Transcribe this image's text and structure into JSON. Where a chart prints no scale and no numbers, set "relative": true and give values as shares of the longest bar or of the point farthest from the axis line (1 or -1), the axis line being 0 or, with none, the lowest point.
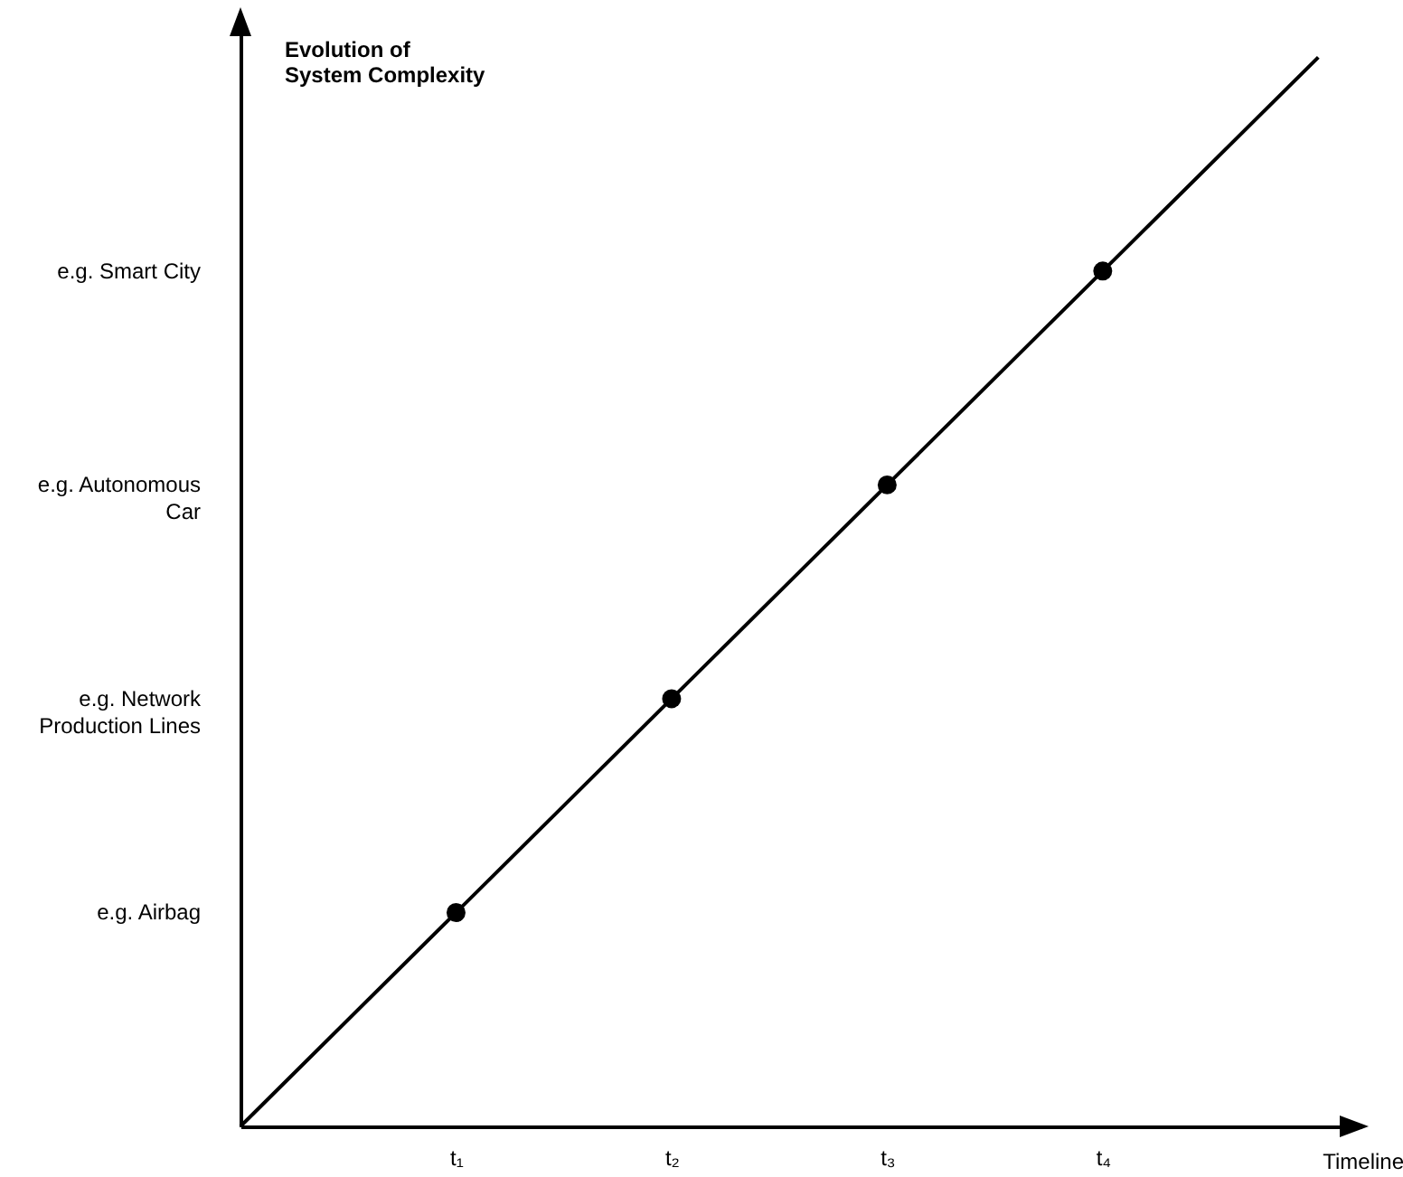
{
  "chart_data": {
    "type": "line",
    "relative": true,
    "ylabel": "Evolution of System Complexity",
    "xlabel": "Timeline",
    "categories": [
      null,
      "t₁",
      "t₂",
      "t₃",
      "t₄",
      null
    ],
    "grid": false,
    "series": [
      {
        "color": "#000000",
        "values": [
          0,
          0.2,
          0.4,
          0.6,
          0.8,
          1
        ]
      },
      {
        "type": "scatter",
        "color": "#000000",
        "values": [
          null,
          0.2,
          0.4,
          0.6,
          0.8,
          null
        ]
      }
    ],
    "annotations": [
      "e.g. Airbag",
      "e.g. Network Production Lines",
      "e.g. Autonomous Car",
      "e.g. Smart City"
    ]
  }
}
